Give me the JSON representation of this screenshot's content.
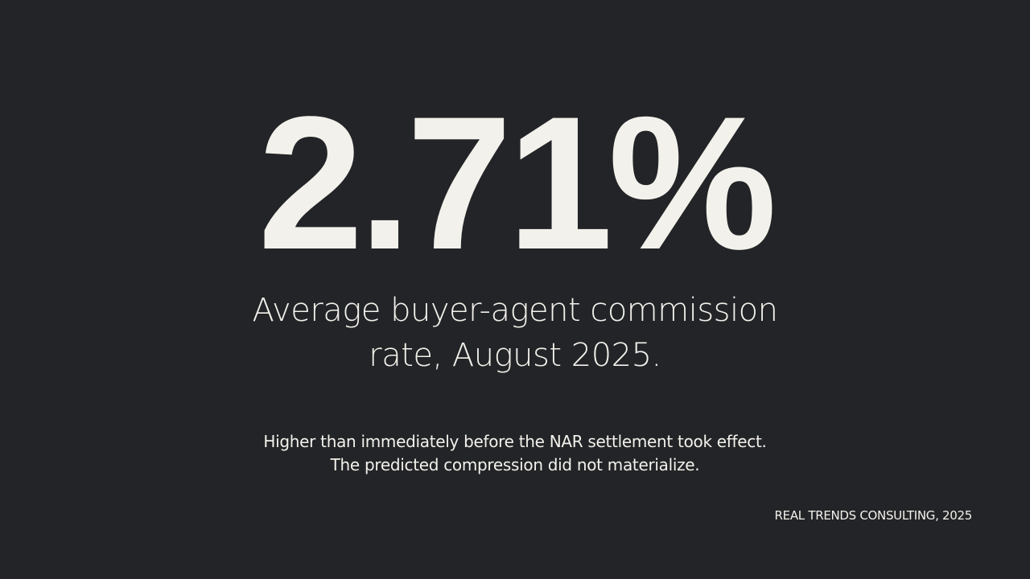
{
  "stat": "2.71%",
  "caption": [
    "Average buyer-agent commission",
    "rate, August 2025."
  ],
  "note": [
    "Higher than immediately before the NAR settlement took effect.",
    "The predicted compression did not materialize."
  ],
  "source": "REAL TRENDS CONSULTING, 2025"
}
